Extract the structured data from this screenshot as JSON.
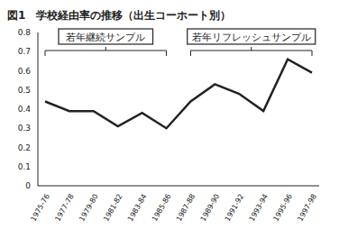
{
  "chart_data": {
    "type": "line",
    "title": "図1　学校経由率の推移（出生コーホート別）",
    "categories": [
      "1975-76",
      "1977-78",
      "1979-80",
      "1981-82",
      "1983-84",
      "1985-86",
      "1987-88",
      "1989-90",
      "1991-92",
      "1993-94",
      "1995-96",
      "1997-98"
    ],
    "values": [
      0.44,
      0.39,
      0.39,
      0.31,
      0.38,
      0.3,
      0.44,
      0.53,
      0.48,
      0.39,
      0.66,
      0.59
    ],
    "color": "#222222",
    "ylim": [
      0,
      0.8
    ],
    "yticks": [
      0,
      0.1,
      0.2,
      0.3,
      0.4,
      0.5,
      0.6,
      0.7,
      0.8
    ],
    "grid": false,
    "annotations": [
      {
        "text": "若年継続サンプル",
        "from": "1975-76",
        "to": "1985-86"
      },
      {
        "text": "若年リフレッシュサンプル",
        "from": "1987-88",
        "to": "1997-98"
      }
    ]
  }
}
